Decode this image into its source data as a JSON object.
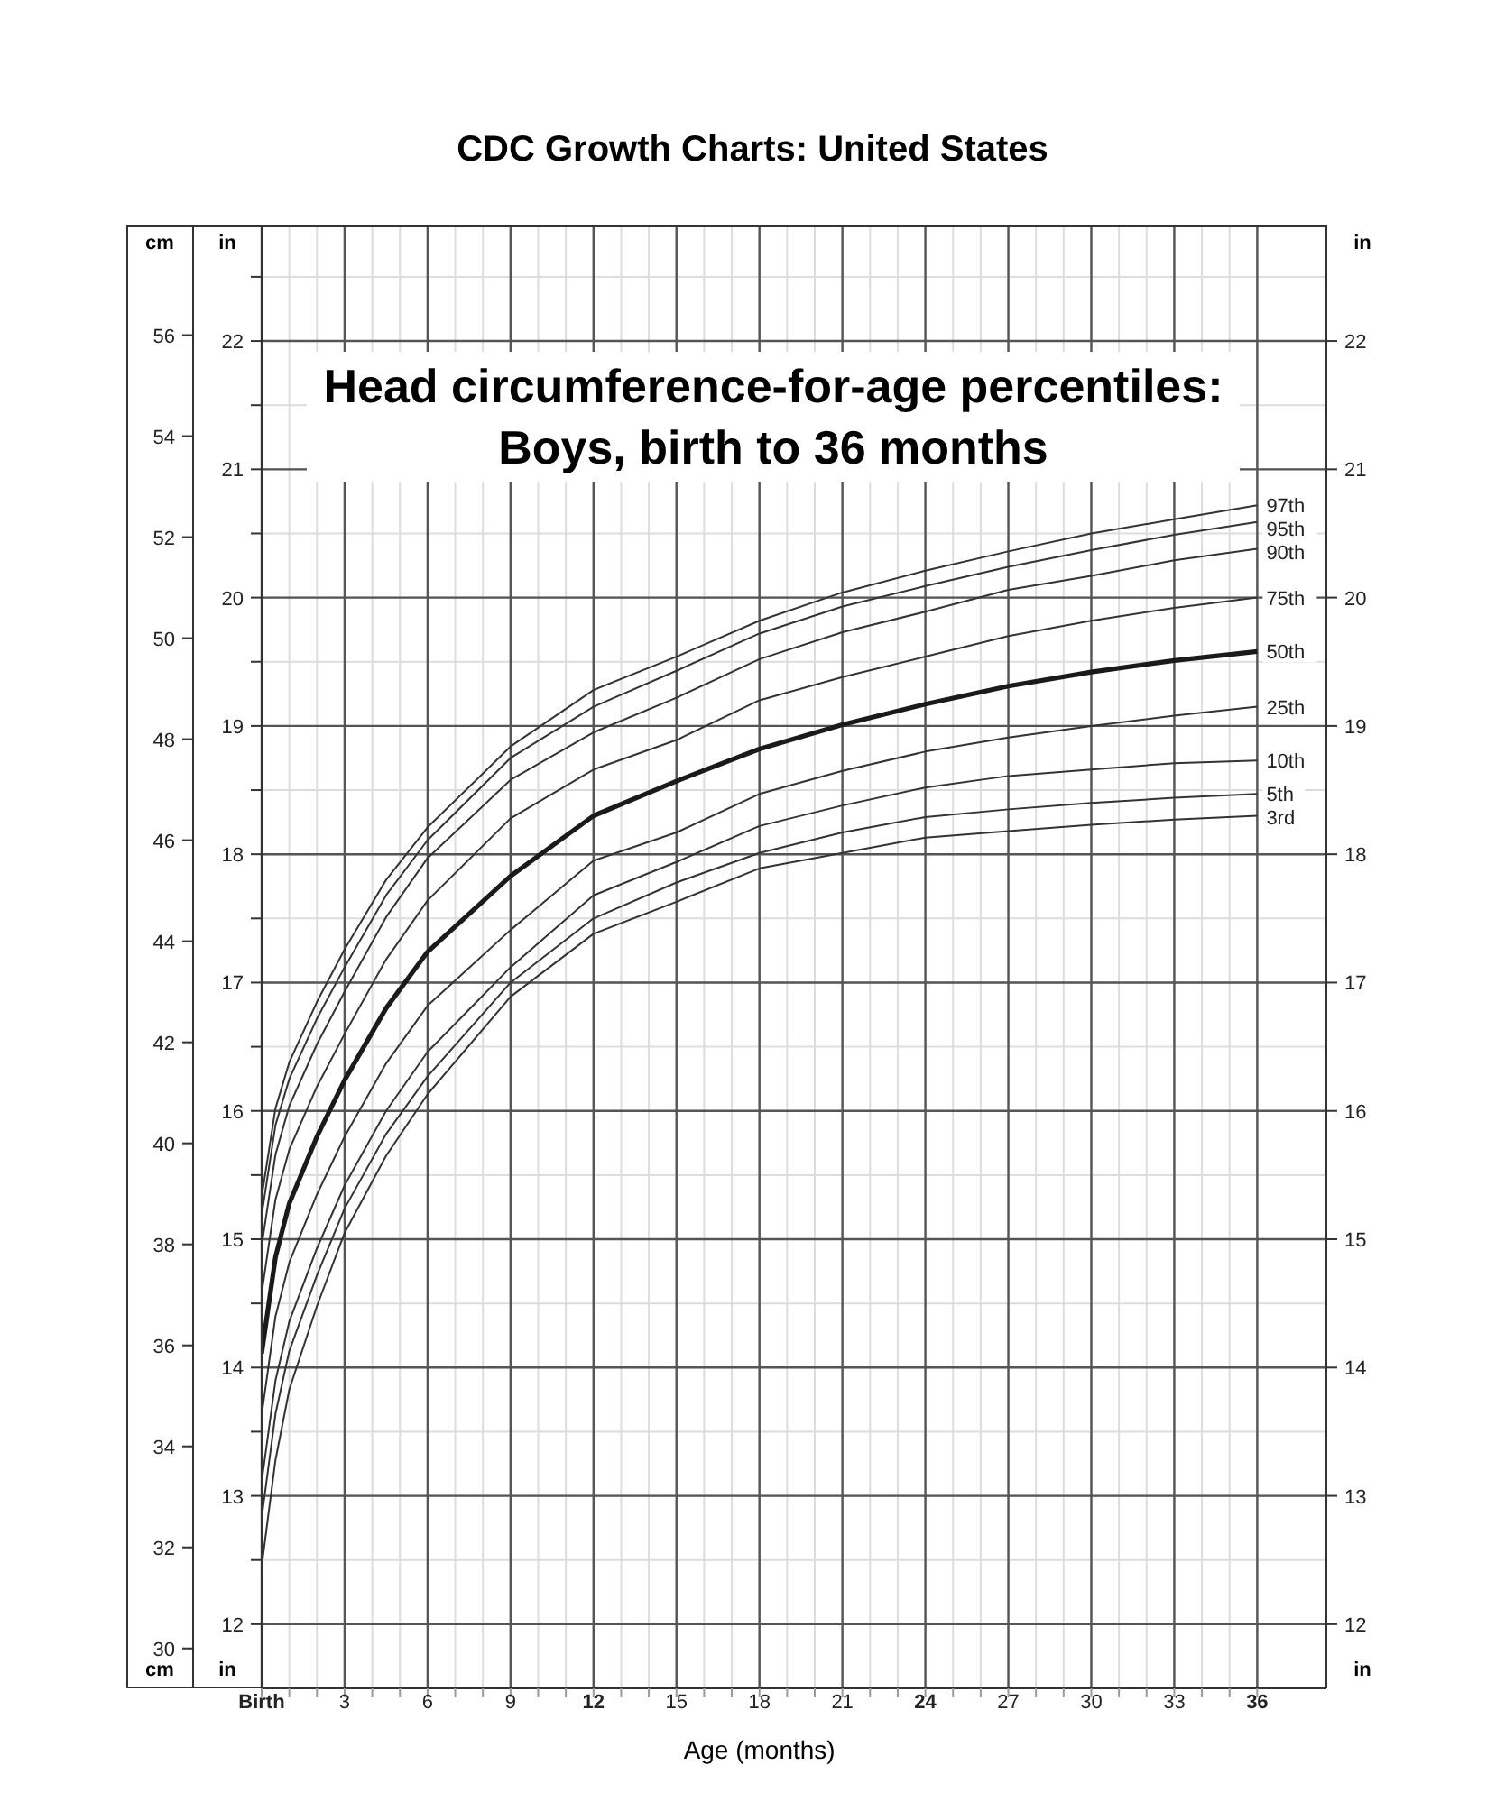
{
  "chart_data": {
    "type": "line",
    "title": "CDC Growth Charts: United States",
    "subtitle": "Head circumference-for-age percentiles:\nBoys, birth to 36 months",
    "xlabel": "Age (months)",
    "ylabel": "in",
    "y2label": "in",
    "y3label": "cm",
    "x": [
      0,
      0.5,
      1,
      2,
      3,
      4.5,
      6,
      9,
      12,
      15,
      18,
      21,
      24,
      27,
      30,
      33,
      36
    ],
    "series": [
      {
        "name": "97th",
        "color": "#333333",
        "values": [
          15.33,
          16.02,
          16.38,
          16.85,
          17.26,
          17.8,
          18.21,
          18.84,
          19.28,
          19.54,
          19.82,
          20.04,
          20.21,
          20.36,
          20.5,
          20.61,
          20.72
        ]
      },
      {
        "name": "95th",
        "color": "#333333",
        "values": [
          15.19,
          15.89,
          16.25,
          16.72,
          17.12,
          17.68,
          18.11,
          18.75,
          19.15,
          19.43,
          19.72,
          19.93,
          20.09,
          20.24,
          20.37,
          20.49,
          20.59
        ]
      },
      {
        "name": "90th",
        "color": "#333333",
        "values": [
          14.95,
          15.66,
          16.04,
          16.52,
          16.93,
          17.51,
          17.97,
          18.58,
          18.95,
          19.22,
          19.52,
          19.73,
          19.89,
          20.06,
          20.17,
          20.29,
          20.38
        ]
      },
      {
        "name": "75th",
        "color": "#333333",
        "values": [
          14.58,
          15.31,
          15.7,
          16.19,
          16.6,
          17.18,
          17.64,
          18.28,
          18.66,
          18.89,
          19.2,
          19.38,
          19.54,
          19.7,
          19.82,
          19.92,
          20.0
        ]
      },
      {
        "name": "50th",
        "color": "#1a1a1a",
        "values": [
          14.11,
          14.86,
          15.28,
          15.8,
          16.24,
          16.8,
          17.24,
          17.83,
          18.3,
          18.57,
          18.82,
          19.01,
          19.17,
          19.31,
          19.42,
          19.51,
          19.58
        ]
      },
      {
        "name": "25th",
        "color": "#333333",
        "values": [
          13.63,
          14.4,
          14.82,
          15.35,
          15.8,
          16.37,
          16.82,
          17.41,
          17.95,
          18.17,
          18.47,
          18.65,
          18.8,
          18.91,
          19.0,
          19.08,
          19.15
        ]
      },
      {
        "name": "10th",
        "color": "#333333",
        "values": [
          13.11,
          13.9,
          14.36,
          14.93,
          15.42,
          16.0,
          16.46,
          17.12,
          17.68,
          17.94,
          18.22,
          18.38,
          18.52,
          18.61,
          18.66,
          18.71,
          18.73
        ]
      },
      {
        "name": "5th",
        "color": "#333333",
        "values": [
          12.83,
          13.64,
          14.13,
          14.72,
          15.24,
          15.82,
          16.27,
          17.0,
          17.5,
          17.78,
          18.01,
          18.17,
          18.29,
          18.35,
          18.4,
          18.44,
          18.47
        ]
      },
      {
        "name": "3rd",
        "color": "#333333",
        "values": [
          12.45,
          13.28,
          13.83,
          14.48,
          15.05,
          15.65,
          16.13,
          16.89,
          17.38,
          17.63,
          17.89,
          18.01,
          18.13,
          18.18,
          18.23,
          18.27,
          18.3
        ]
      }
    ],
    "xlim": [
      0,
      38.5
    ],
    "xticks": [
      {
        "value": 0,
        "label": "Birth"
      },
      {
        "value": 1,
        "label": null
      },
      {
        "value": 2,
        "label": null
      },
      3,
      {
        "value": 4,
        "label": null
      },
      {
        "value": 5,
        "label": null
      },
      6,
      {
        "value": 7,
        "label": null
      },
      {
        "value": 8,
        "label": null
      },
      9,
      {
        "value": 10,
        "label": null
      },
      {
        "value": 11,
        "label": null
      },
      12,
      {
        "value": 13,
        "label": null
      },
      {
        "value": 14,
        "label": null
      },
      15,
      {
        "value": 16,
        "label": null
      },
      {
        "value": 17,
        "label": null
      },
      18,
      {
        "value": 19,
        "label": null
      },
      {
        "value": 20,
        "label": null
      },
      21,
      {
        "value": 22,
        "label": null
      },
      {
        "value": 23,
        "label": null
      },
      24,
      {
        "value": 25,
        "label": null
      },
      {
        "value": 26,
        "label": null
      },
      27,
      {
        "value": 28,
        "label": null
      },
      {
        "value": 29,
        "label": null
      },
      30,
      {
        "value": 31,
        "label": null
      },
      {
        "value": 32,
        "label": null
      },
      33,
      {
        "value": 34,
        "label": null
      },
      {
        "value": 35,
        "label": null
      },
      36
    ],
    "ylim": [
      11.5,
      22.9
    ],
    "yticks": [
      12,
      {
        "value": 12.5,
        "label": null
      },
      13,
      {
        "value": 13.5,
        "label": null
      },
      14,
      {
        "value": 14.5,
        "label": null
      },
      15,
      {
        "value": 15.5,
        "label": null
      },
      16,
      {
        "value": 16.5,
        "label": null
      },
      17,
      {
        "value": 17.5,
        "label": null
      },
      18,
      {
        "value": 18.5,
        "label": null
      },
      19,
      {
        "value": 19.5,
        "label": null
      },
      20,
      {
        "value": 20.5,
        "label": null
      },
      21,
      {
        "value": 21.5,
        "label": null
      },
      22,
      {
        "value": 22.5,
        "label": null
      }
    ],
    "y2lim": [
      11.5,
      22.9
    ],
    "y2ticks": [
      12,
      13,
      14,
      15,
      16,
      17,
      18,
      19,
      20,
      21,
      22
    ],
    "y3lim": [
      29.21,
      58.17
    ],
    "y3ticks": [
      30,
      32,
      34,
      36,
      38,
      40,
      42,
      44,
      46,
      48,
      50,
      52,
      54,
      56
    ],
    "grid": true,
    "marker": "none",
    "line_style": "solid"
  }
}
